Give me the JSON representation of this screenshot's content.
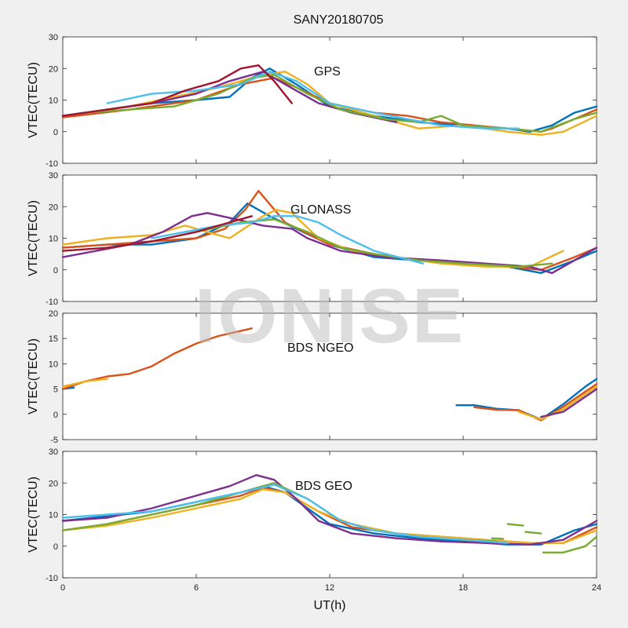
{
  "figure": {
    "title": "SANY20180705",
    "xlabel": "UT(h)",
    "watermark": "IONISE",
    "xlim": [
      0,
      24
    ],
    "xticks": [
      0,
      6,
      12,
      18,
      24
    ]
  },
  "colors": [
    "#0072BD",
    "#D95319",
    "#EDB120",
    "#7E2F8E",
    "#77AC30",
    "#4DBEEE",
    "#A2142F"
  ],
  "chart_data": [
    {
      "type": "line",
      "title": "GPS",
      "ylabel": "VTEC(TECU)",
      "ylim": [
        -10,
        30
      ],
      "yticks": [
        -10,
        0,
        10,
        20,
        30
      ],
      "series": [
        {
          "color": "#0072BD",
          "x": [
            0,
            2,
            4,
            6,
            7.5,
            8.5,
            9.3,
            10.5,
            12,
            14,
            16,
            18,
            20,
            21,
            22,
            23,
            24
          ],
          "y": [
            5,
            7,
            9,
            10,
            11,
            17,
            20,
            15,
            8,
            5,
            3,
            2,
            1,
            0,
            2,
            6,
            8
          ]
        },
        {
          "color": "#D95319",
          "x": [
            0,
            3,
            6,
            8,
            9.5,
            10.5,
            12,
            14,
            15.5,
            17,
            18.5,
            20,
            21.5,
            22,
            23,
            24
          ],
          "y": [
            4.5,
            7,
            10,
            15,
            17,
            14,
            9,
            6,
            5,
            3,
            2,
            1,
            0,
            1,
            4,
            7
          ]
        },
        {
          "color": "#EDB120",
          "x": [
            1,
            3,
            5,
            7,
            9,
            10,
            11,
            12,
            14,
            16,
            18,
            20,
            21.5,
            22.5,
            24
          ],
          "y": [
            6,
            8,
            11,
            14,
            18,
            19,
            15,
            9,
            5,
            1,
            2,
            0,
            -1,
            0,
            5
          ]
        },
        {
          "color": "#7E2F8E",
          "x": [
            0,
            2,
            4,
            6,
            7.5,
            9,
            10,
            11.5,
            13,
            15
          ],
          "y": [
            5,
            7,
            9,
            12,
            16,
            19,
            15,
            9,
            6,
            3
          ]
        },
        {
          "color": "#77AC30",
          "x": [
            1,
            3,
            5,
            7,
            8.5,
            9.5,
            11,
            12.5,
            14.5,
            16,
            17,
            18,
            20,
            21.5,
            23,
            24
          ],
          "y": [
            6,
            7,
            8,
            12,
            17,
            18,
            12,
            7,
            4,
            3,
            5,
            2,
            1,
            0,
            4,
            6
          ]
        },
        {
          "color": "#4DBEEE",
          "x": [
            2,
            4,
            6,
            8,
            9.3,
            10.5,
            12,
            14,
            15.5,
            17,
            19,
            20.5
          ],
          "y": [
            9,
            12,
            13,
            15,
            19,
            16,
            9,
            6,
            4,
            2,
            1,
            1
          ]
        },
        {
          "color": "#A2142F",
          "x": [
            0,
            2,
            4,
            5.5,
            7,
            8,
            8.8,
            9.5,
            10.3
          ],
          "y": [
            5,
            7,
            9,
            13,
            16,
            20,
            21,
            16,
            9
          ]
        }
      ]
    },
    {
      "type": "line",
      "title": "GLONASS",
      "ylabel": "VTEC(TECU)",
      "ylim": [
        -10,
        30
      ],
      "yticks": [
        -10,
        0,
        10,
        20,
        30
      ],
      "series": [
        {
          "color": "#0072BD",
          "x": [
            0,
            2,
            4,
            6,
            7.5,
            8.3,
            9.3,
            10.5,
            12,
            14,
            16,
            18,
            20,
            21.5,
            23,
            24
          ],
          "y": [
            7,
            8,
            8,
            10,
            15,
            21,
            17,
            13,
            8,
            4,
            3,
            2,
            1,
            -1,
            3,
            6
          ]
        },
        {
          "color": "#D95319",
          "x": [
            0,
            2,
            4,
            6,
            7.3,
            8.2,
            8.8,
            10,
            12,
            14,
            16,
            18,
            20,
            21.5,
            23,
            24
          ],
          "y": [
            7,
            8,
            9,
            10,
            13,
            19,
            25,
            15,
            8,
            5,
            3,
            2,
            1,
            0,
            4,
            7
          ]
        },
        {
          "color": "#EDB120",
          "x": [
            0,
            1,
            2,
            4,
            5.5,
            7.5,
            9,
            9.6,
            10.3,
            11.5,
            13,
            15,
            17,
            19,
            21,
            22.5
          ],
          "y": [
            8,
            9,
            10,
            11,
            14,
            10,
            17,
            19,
            18,
            10,
            6,
            4,
            2,
            1,
            1,
            6
          ]
        },
        {
          "color": "#7E2F8E",
          "x": [
            0,
            1.5,
            3,
            4.5,
            5.8,
            6.5,
            7.8,
            9,
            10.3,
            11,
            12.5,
            14.5,
            17,
            19,
            21,
            22,
            23,
            24
          ],
          "y": [
            4,
            6,
            8,
            12,
            17,
            18,
            16,
            14,
            13,
            10,
            6,
            4,
            3,
            2,
            1,
            -1,
            3,
            7
          ]
        },
        {
          "color": "#77AC30",
          "x": [
            2,
            4,
            6,
            8,
            9.5,
            11,
            12.5,
            14,
            16,
            18,
            20.5,
            22
          ],
          "y": [
            7,
            9,
            12,
            15,
            16,
            12,
            7,
            5,
            3,
            2,
            1,
            2
          ]
        },
        {
          "color": "#4DBEEE",
          "x": [
            4,
            5.5,
            7,
            8.5,
            9.5,
            10.5,
            11.5,
            12.5,
            14,
            16.2
          ],
          "y": [
            10,
            12,
            14,
            15,
            17,
            17,
            15,
            11,
            6,
            2
          ]
        },
        {
          "color": "#A2142F",
          "x": [
            0,
            2,
            4,
            6,
            7.5,
            8.5
          ],
          "y": [
            6,
            7,
            9,
            12,
            15,
            17
          ]
        }
      ]
    },
    {
      "type": "line",
      "title": "BDS NGEO",
      "ylabel": "VTEC(TECU)",
      "ylim": [
        -5,
        20
      ],
      "yticks": [
        -5,
        0,
        5,
        10,
        15,
        20
      ],
      "series": [
        {
          "color": "#0072BD",
          "x": [
            0,
            0.5
          ],
          "y": [
            5,
            5.3
          ]
        },
        {
          "color": "#0072BD",
          "x": [
            17.7,
            18.5,
            19.5,
            20.5,
            21.5,
            22.5,
            23.5,
            24
          ],
          "y": [
            1.8,
            1.8,
            1.1,
            0.8,
            -1,
            2,
            5.5,
            7
          ]
        },
        {
          "color": "#D95319",
          "x": [
            0,
            1,
            2,
            3,
            4,
            5,
            6,
            7,
            7.5,
            8.5
          ],
          "y": [
            5,
            6.5,
            7.5,
            8,
            9.5,
            12,
            14,
            15.5,
            16,
            17
          ]
        },
        {
          "color": "#D95319",
          "x": [
            18.5,
            19.5,
            20.5,
            21.5,
            22.5,
            23.5,
            24
          ],
          "y": [
            1.4,
            0.9,
            0.8,
            -1.2,
            1.5,
            4.5,
            6
          ]
        },
        {
          "color": "#EDB120",
          "x": [
            0,
            1,
            2
          ],
          "y": [
            5.5,
            6.5,
            7
          ]
        },
        {
          "color": "#EDB120",
          "x": [
            20.5,
            21.5,
            22.5,
            23.5,
            24
          ],
          "y": [
            0.5,
            -1,
            1,
            4,
            5.5
          ]
        },
        {
          "color": "#7E2F8E",
          "x": [
            21.5,
            22.5,
            23.5,
            24
          ],
          "y": [
            -0.5,
            0.5,
            3.5,
            5
          ]
        }
      ]
    },
    {
      "type": "line",
      "title": "BDS GEO",
      "ylabel": "VTEC(TECU)",
      "ylim": [
        -10,
        30
      ],
      "yticks": [
        -10,
        0,
        10,
        20,
        30
      ],
      "series": [
        {
          "color": "#0072BD",
          "x": [
            0,
            2,
            4,
            6,
            8,
            9,
            10,
            11,
            12,
            14,
            16,
            18,
            20,
            21.5,
            23,
            24
          ],
          "y": [
            8,
            9.5,
            11,
            14,
            17,
            19,
            17,
            12,
            7,
            4,
            2.5,
            1.5,
            0.5,
            0.5,
            5,
            7
          ]
        },
        {
          "color": "#D95319",
          "x": [
            0,
            2,
            4,
            6,
            8,
            9,
            10,
            11.5,
            13,
            15,
            17,
            19,
            21,
            22.5,
            24
          ],
          "y": [
            5,
            7,
            10,
            13,
            16,
            18.5,
            17,
            11,
            6,
            4,
            3,
            2,
            1,
            1,
            6
          ]
        },
        {
          "color": "#EDB120",
          "x": [
            0,
            2,
            4,
            6,
            8,
            9,
            10,
            11.5,
            13,
            15,
            17,
            19,
            21,
            22.5,
            24
          ],
          "y": [
            5,
            6.5,
            9,
            12,
            15,
            18,
            17,
            11,
            7,
            4,
            3,
            2,
            1,
            1,
            5
          ]
        },
        {
          "color": "#7E2F8E",
          "x": [
            0,
            2,
            4,
            6,
            7.5,
            8.7,
            9.5,
            10.5,
            11.5,
            13,
            15,
            17,
            19,
            21,
            22.5,
            24
          ],
          "y": [
            8,
            9,
            12,
            16,
            19,
            22.5,
            21,
            15,
            8,
            4,
            2.5,
            1.5,
            1,
            0.5,
            2,
            8
          ]
        },
        {
          "color": "#77AC30",
          "x": [
            0,
            2,
            4,
            6,
            8,
            9.5,
            11,
            12.5,
            14,
            16,
            18,
            19.5
          ],
          "y": [
            5,
            7,
            10,
            13,
            17,
            20,
            15,
            8,
            5,
            3,
            2,
            1.5
          ]
        },
        {
          "color": "#77AC30",
          "x": [
            19.3,
            19.8
          ],
          "y": [
            2.5,
            2.3
          ]
        },
        {
          "color": "#77AC30",
          "x": [
            20,
            20.7
          ],
          "y": [
            7,
            6.5
          ]
        },
        {
          "color": "#77AC30",
          "x": [
            20.8,
            21.5
          ],
          "y": [
            4.5,
            4
          ]
        },
        {
          "color": "#77AC30",
          "x": [
            21.6,
            22.5,
            23.5,
            24
          ],
          "y": [
            -2,
            -2,
            0,
            3
          ]
        },
        {
          "color": "#4DBEEE",
          "x": [
            0,
            2,
            4,
            6,
            8,
            9.5,
            11,
            12.5,
            14,
            16,
            18,
            20
          ],
          "y": [
            9,
            10,
            11,
            14,
            17,
            19.5,
            15,
            8,
            5,
            3,
            2,
            1
          ]
        }
      ]
    }
  ]
}
